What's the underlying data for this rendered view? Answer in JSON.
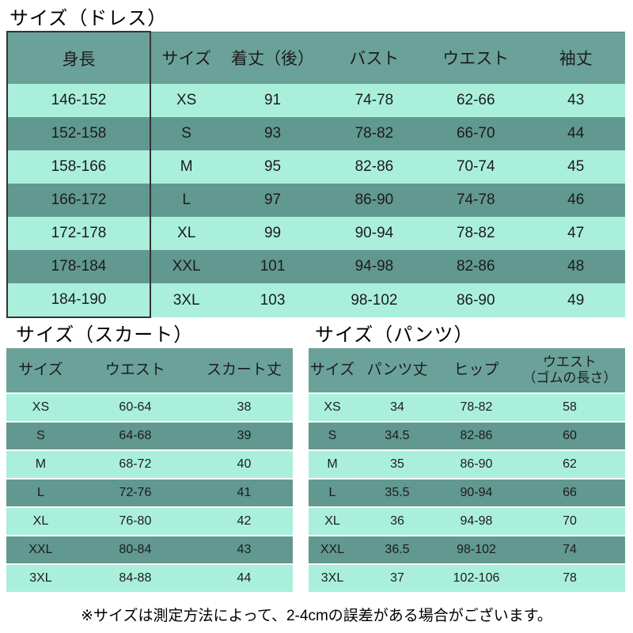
{
  "colors": {
    "header_bg": "#6AA29A",
    "row_dark": "#619890",
    "row_light": "#AAEFDC",
    "box_border": "#333333"
  },
  "dress": {
    "title": "サイズ（ドレス）",
    "headers": [
      "身長",
      "サイズ",
      "着丈（後）",
      "バスト",
      "ウエスト",
      "袖丈"
    ],
    "rows": [
      [
        "146-152",
        "XS",
        "91",
        "74-78",
        "62-66",
        "43"
      ],
      [
        "152-158",
        "S",
        "93",
        "78-82",
        "66-70",
        "44"
      ],
      [
        "158-166",
        "M",
        "95",
        "82-86",
        "70-74",
        "45"
      ],
      [
        "166-172",
        "L",
        "97",
        "86-90",
        "74-78",
        "46"
      ],
      [
        "172-178",
        "XL",
        "99",
        "90-94",
        "78-82",
        "47"
      ],
      [
        "178-184",
        "XXL",
        "101",
        "94-98",
        "82-86",
        "48"
      ],
      [
        "184-190",
        "3XL",
        "103",
        "98-102",
        "86-90",
        "49"
      ]
    ]
  },
  "skirt": {
    "title": "サイズ（スカート）",
    "headers": [
      "サイズ",
      "ウエスト",
      "スカート丈"
    ],
    "rows": [
      [
        "XS",
        "60-64",
        "38"
      ],
      [
        "S",
        "64-68",
        "39"
      ],
      [
        "M",
        "68-72",
        "40"
      ],
      [
        "L",
        "72-76",
        "41"
      ],
      [
        "XL",
        "76-80",
        "42"
      ],
      [
        "XXL",
        "80-84",
        "43"
      ],
      [
        "3XL",
        "84-88",
        "44"
      ]
    ]
  },
  "pants": {
    "title": "サイズ（パンツ）",
    "headers": [
      "サイズ",
      "パンツ丈",
      "ヒップ",
      "ウエスト\n（ゴムの長さ）"
    ],
    "rows": [
      [
        "XS",
        "34",
        "78-82",
        "58"
      ],
      [
        "S",
        "34.5",
        "82-86",
        "60"
      ],
      [
        "M",
        "35",
        "86-90",
        "62"
      ],
      [
        "L",
        "35.5",
        "90-94",
        "66"
      ],
      [
        "XL",
        "36",
        "94-98",
        "70"
      ],
      [
        "XXL",
        "36.5",
        "98-102",
        "74"
      ],
      [
        "3XL",
        "37",
        "102-106",
        "78"
      ]
    ]
  },
  "footer": {
    "note": "※サイズは測定方法によって、2-4cmの誤差がある場合がございます。"
  }
}
